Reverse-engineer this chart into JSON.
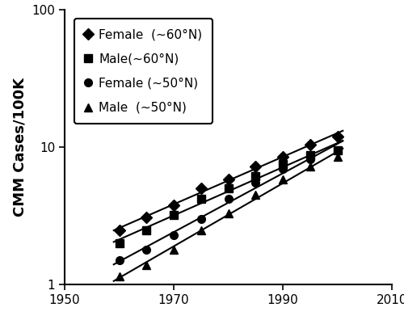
{
  "title": "",
  "ylabel": "CMM Cases/100K",
  "xlabel": "",
  "xlim": [
    1950,
    2010
  ],
  "ylim": [
    1,
    100
  ],
  "xticks": [
    1950,
    1970,
    1990,
    2010
  ],
  "series": [
    {
      "label": "Female  (~60°N)",
      "marker": "D",
      "x": [
        1960,
        1965,
        1970,
        1975,
        1980,
        1985,
        1990,
        1995,
        2000
      ],
      "y": [
        2.5,
        3.1,
        3.8,
        5.0,
        5.8,
        7.2,
        8.5,
        10.5,
        12.0
      ]
    },
    {
      "label": "Male(~60°N)",
      "marker": "s",
      "x": [
        1960,
        1965,
        1970,
        1975,
        1980,
        1985,
        1990,
        1995,
        2000
      ],
      "y": [
        2.0,
        2.5,
        3.2,
        4.2,
        5.0,
        6.2,
        7.5,
        8.8,
        9.5
      ]
    },
    {
      "label": "Female (~50°N)",
      "marker": "o",
      "x": [
        1960,
        1965,
        1970,
        1975,
        1980,
        1985,
        1990,
        1995,
        2000
      ],
      "y": [
        1.5,
        1.8,
        2.3,
        3.0,
        4.2,
        5.5,
        7.0,
        8.2,
        9.5
      ]
    },
    {
      "label": "Male  (~50°N)",
      "marker": "^",
      "x": [
        1960,
        1965,
        1970,
        1975,
        1980,
        1985,
        1990,
        1995,
        2000
      ],
      "y": [
        1.15,
        1.4,
        1.8,
        2.5,
        3.3,
        4.5,
        5.8,
        7.2,
        8.5
      ]
    }
  ],
  "line_color": "black",
  "marker_color": "black",
  "marker_size": 7,
  "linewidth": 1.5,
  "legend_fontsize": 11,
  "ylabel_fontsize": 13,
  "tick_fontsize": 11,
  "background_color": "#ffffff"
}
